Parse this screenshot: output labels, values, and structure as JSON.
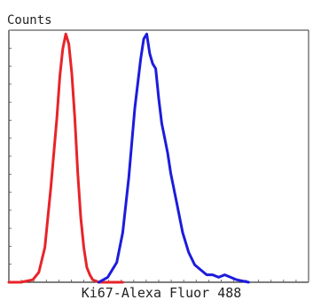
{
  "chart_data": {
    "type": "line",
    "title": "",
    "xlabel": "Ki67-Alexa Fluor 488",
    "ylabel": "Counts",
    "grid": false,
    "legend": "none",
    "x_scale": "log",
    "tick_labels_shown": false,
    "series": [
      {
        "color": "#e8242a",
        "x": [
          0.0,
          0.04,
          0.08,
          0.1,
          0.12,
          0.14,
          0.16,
          0.17,
          0.18,
          0.19,
          0.2,
          0.21,
          0.22,
          0.23,
          0.24,
          0.25,
          0.26,
          0.27,
          0.28,
          0.3,
          0.33,
          0.38
        ],
        "y": [
          0.0,
          0.0,
          0.01,
          0.04,
          0.14,
          0.38,
          0.66,
          0.83,
          0.94,
          1.0,
          0.96,
          0.84,
          0.66,
          0.44,
          0.26,
          0.14,
          0.06,
          0.03,
          0.01,
          0.0,
          0.0,
          0.0
        ]
      },
      {
        "color": "#1c1cdc",
        "x": [
          0.3,
          0.33,
          0.36,
          0.38,
          0.4,
          0.42,
          0.44,
          0.45,
          0.46,
          0.47,
          0.48,
          0.49,
          0.5,
          0.51,
          0.52,
          0.53,
          0.54,
          0.56,
          0.58,
          0.6,
          0.62,
          0.64,
          0.66,
          0.68,
          0.7,
          0.72,
          0.74,
          0.76,
          0.78,
          0.8
        ],
        "y": [
          0.0,
          0.02,
          0.08,
          0.2,
          0.42,
          0.7,
          0.9,
          0.98,
          1.0,
          0.92,
          0.88,
          0.86,
          0.74,
          0.64,
          0.58,
          0.52,
          0.44,
          0.32,
          0.2,
          0.12,
          0.07,
          0.05,
          0.03,
          0.03,
          0.02,
          0.03,
          0.02,
          0.01,
          0.005,
          0.0
        ]
      }
    ]
  }
}
